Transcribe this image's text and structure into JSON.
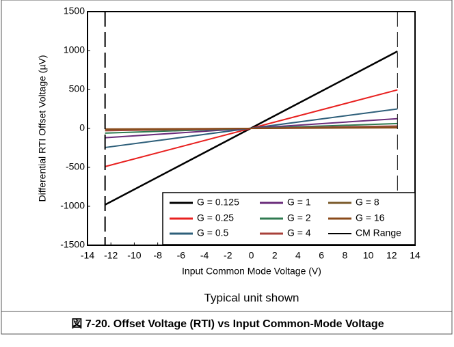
{
  "chart_data": {
    "type": "line",
    "xlabel": "Input Common Mode Voltage (V)",
    "ylabel": "Differential RTI Offset Voltage (µV)",
    "note": "Typical unit shown",
    "caption": "図 7-20. Offset Voltage (RTI) vs Input Common-Mode Voltage",
    "x": [
      -12.5,
      12.5
    ],
    "series": [
      {
        "name": "G = 0.125",
        "color": "#000000",
        "values": [
          -980,
          990
        ]
      },
      {
        "name": "G = 0.25",
        "color": "#e8201f",
        "values": [
          -490,
          495
        ]
      },
      {
        "name": "G = 0.5",
        "color": "#2e5f7a",
        "values": [
          -245,
          250
        ]
      },
      {
        "name": "G = 1",
        "color": "#6a2c7a",
        "values": [
          -120,
          125
        ]
      },
      {
        "name": "G = 2",
        "color": "#2f7a50",
        "values": [
          -60,
          62
        ]
      },
      {
        "name": "G = 4",
        "color": "#a8403a",
        "values": [
          -30,
          31
        ]
      },
      {
        "name": "G = 8",
        "color": "#7a5a2a",
        "values": [
          -15,
          16
        ]
      },
      {
        "name": "G = 16",
        "color": "#8a4a1a",
        "values": [
          -8,
          8
        ]
      }
    ],
    "cm_range": {
      "name": "CM Range",
      "color": "#000000",
      "x": [
        -12.5,
        12.5
      ]
    },
    "xlim": [
      -14,
      14
    ],
    "xticks": [
      -14,
      -12,
      -10,
      -8,
      -6,
      -4,
      -2,
      0,
      2,
      4,
      6,
      8,
      10,
      12,
      14
    ],
    "ylim": [
      -1500,
      1500
    ],
    "yticks": [
      -1500,
      -1000,
      -500,
      0,
      500,
      1000,
      1500
    ],
    "grid": false
  }
}
